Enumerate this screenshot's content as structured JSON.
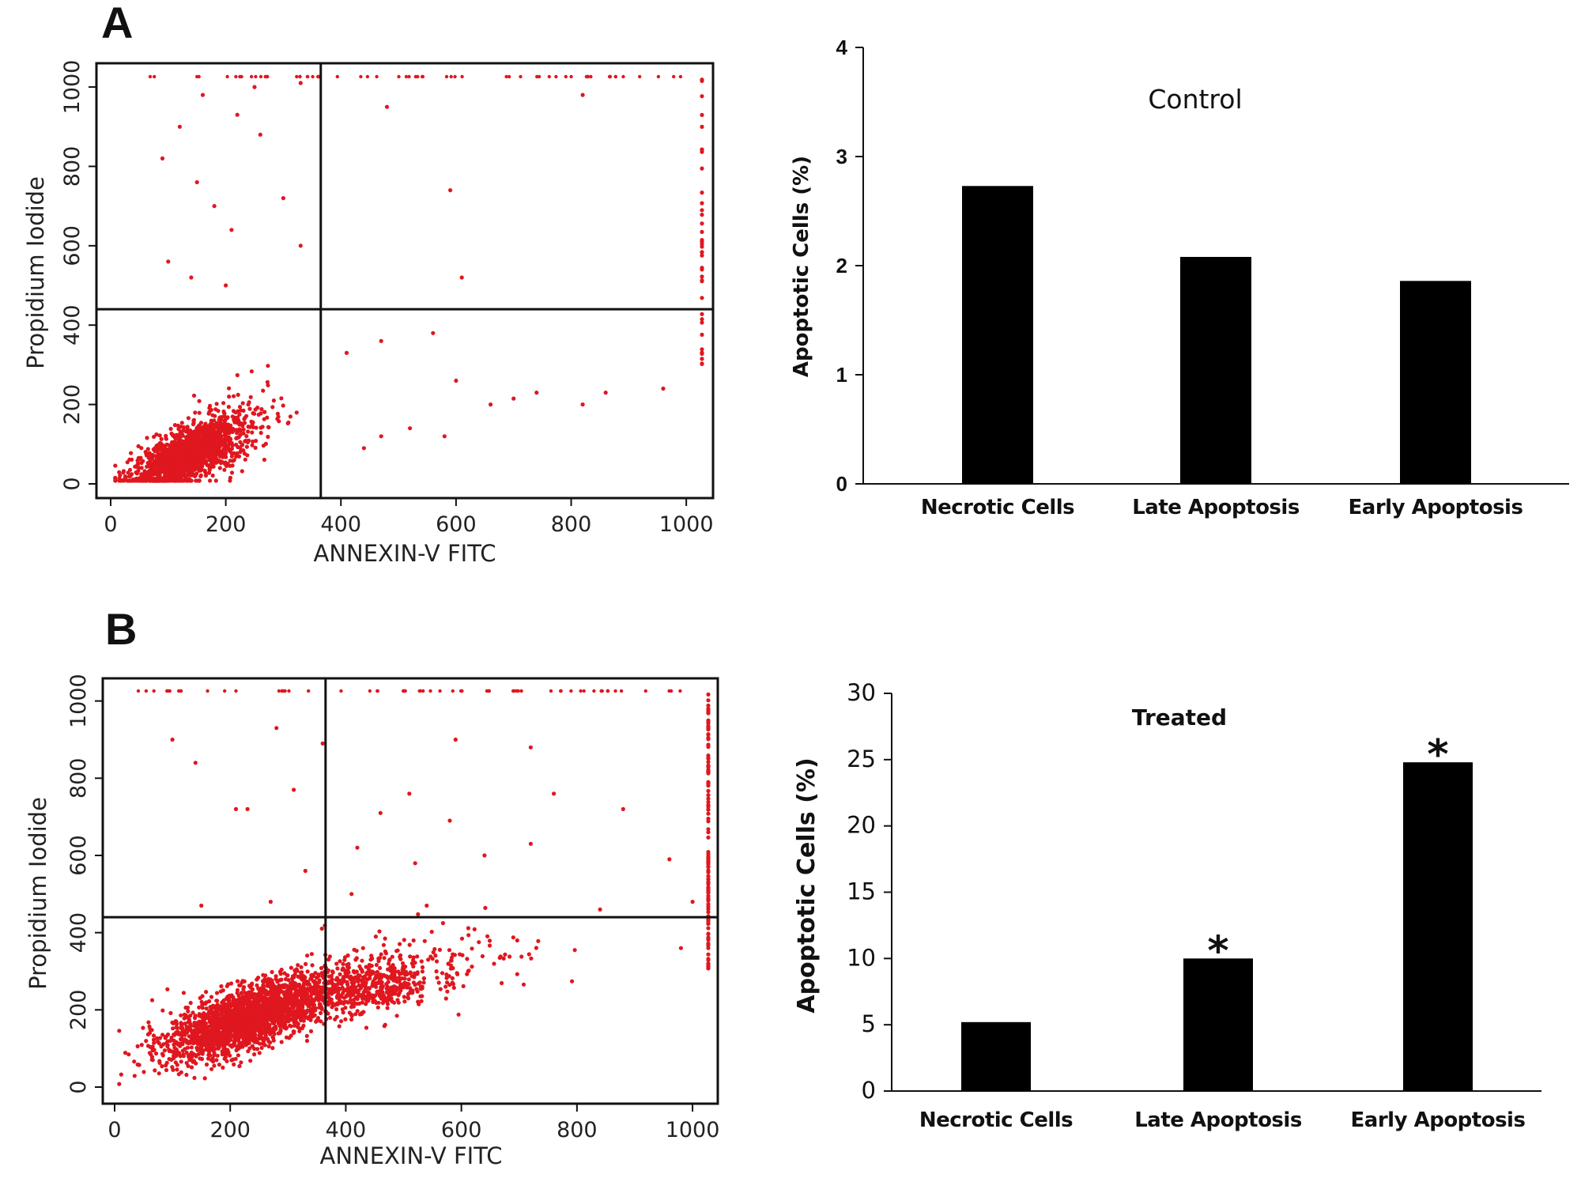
{
  "figure": {
    "panel_labels": [
      "A",
      "B"
    ]
  },
  "chart_data": [
    {
      "type": "scatter",
      "panel": "A",
      "xlabel": "ANNEXIN-V FITC",
      "ylabel": "Propidium Iodide",
      "xlim": [
        0,
        1030
      ],
      "ylim": [
        0,
        1030
      ],
      "xticks": [
        "0",
        "200",
        "400",
        "600",
        "800",
        "1000"
      ],
      "yticks": [
        "0",
        "200",
        "400",
        "600",
        "800",
        "1000"
      ],
      "quadrant_x": 365,
      "quadrant_y": 440,
      "point_color": "#e0171f",
      "clusters": [
        {
          "cx": 130,
          "cy": 70,
          "sx": 45,
          "sy": 30,
          "n": 1500
        },
        {
          "cx": 200,
          "cy": 120,
          "sx": 50,
          "sy": 55,
          "n": 220
        }
      ],
      "sparse_points": [
        [
          440,
          90
        ],
        [
          470,
          120
        ],
        [
          520,
          140
        ],
        [
          600,
          260
        ],
        [
          660,
          200
        ],
        [
          700,
          215
        ],
        [
          740,
          230
        ],
        [
          820,
          200
        ],
        [
          860,
          230
        ],
        [
          960,
          240
        ],
        [
          580,
          120
        ],
        [
          410,
          330
        ],
        [
          470,
          360
        ],
        [
          560,
          380
        ],
        [
          90,
          820
        ],
        [
          120,
          900
        ],
        [
          150,
          760
        ],
        [
          180,
          700
        ],
        [
          210,
          640
        ],
        [
          160,
          980
        ],
        [
          220,
          930
        ],
        [
          260,
          880
        ],
        [
          300,
          720
        ],
        [
          330,
          600
        ],
        [
          100,
          560
        ],
        [
          140,
          520
        ],
        [
          200,
          500
        ],
        [
          590,
          740
        ],
        [
          610,
          520
        ],
        [
          820,
          980
        ],
        [
          480,
          950
        ],
        [
          330,
          1010
        ],
        [
          250,
          1000
        ]
      ],
      "edge_points_right": 40
    },
    {
      "type": "bar",
      "panel": "A",
      "title": "Control",
      "ylabel": "Apoptotic Cells (%)",
      "categories": [
        "Necrotic Cells",
        "Late Apoptosis",
        "Early Apoptosis"
      ],
      "values": [
        2.73,
        2.08,
        1.86
      ],
      "ylim": [
        0,
        4
      ],
      "yticks": [
        "0",
        "1",
        "2",
        "3",
        "4"
      ],
      "bar_color": "#000000"
    },
    {
      "type": "scatter",
      "panel": "B",
      "xlabel": "ANNEXIN-V FITC",
      "ylabel": "Propidium Iodide",
      "xlim": [
        0,
        1030
      ],
      "ylim": [
        0,
        1030
      ],
      "xticks": [
        "0",
        "200",
        "400",
        "600",
        "800",
        "1000"
      ],
      "yticks": [
        "0",
        "200",
        "400",
        "600",
        "800",
        "1000"
      ],
      "quadrant_x": 365,
      "quadrant_y": 440,
      "point_color": "#e0171f",
      "clusters": [
        {
          "cx": 230,
          "cy": 180,
          "sx": 70,
          "sy": 40,
          "n": 2200,
          "slope": 0.5
        },
        {
          "cx": 430,
          "cy": 260,
          "sx": 60,
          "sy": 35,
          "n": 500,
          "slope": 0.2
        },
        {
          "cx": 560,
          "cy": 320,
          "sx": 100,
          "sy": 50,
          "n": 120,
          "slope": 0.1
        }
      ],
      "sparse_points": [
        [
          100,
          900
        ],
        [
          140,
          840
        ],
        [
          210,
          720
        ],
        [
          230,
          720
        ],
        [
          280,
          930
        ],
        [
          310,
          770
        ],
        [
          360,
          890
        ],
        [
          460,
          710
        ],
        [
          510,
          760
        ],
        [
          580,
          690
        ],
        [
          720,
          630
        ],
        [
          760,
          760
        ],
        [
          880,
          720
        ],
        [
          960,
          590
        ],
        [
          590,
          900
        ],
        [
          720,
          880
        ],
        [
          330,
          560
        ],
        [
          420,
          620
        ],
        [
          520,
          580
        ],
        [
          640,
          600
        ],
        [
          150,
          470
        ],
        [
          270,
          480
        ],
        [
          410,
          500
        ],
        [
          540,
          470
        ],
        [
          840,
          460
        ],
        [
          980,
          360
        ],
        [
          1000,
          480
        ]
      ],
      "edge_points_right": 120
    },
    {
      "type": "bar",
      "panel": "B",
      "title": "Treated",
      "ylabel": "Apoptotic Cells (%)",
      "categories": [
        "Necrotic Cells",
        "Late Apoptosis",
        "Early Apoptosis"
      ],
      "values": [
        5.2,
        10.0,
        24.8
      ],
      "ylim": [
        0,
        30
      ],
      "yticks": [
        "0",
        "5",
        "10",
        "15",
        "20",
        "25",
        "30"
      ],
      "significance": [
        "",
        "*",
        "*"
      ],
      "bar_color": "#000000"
    }
  ]
}
